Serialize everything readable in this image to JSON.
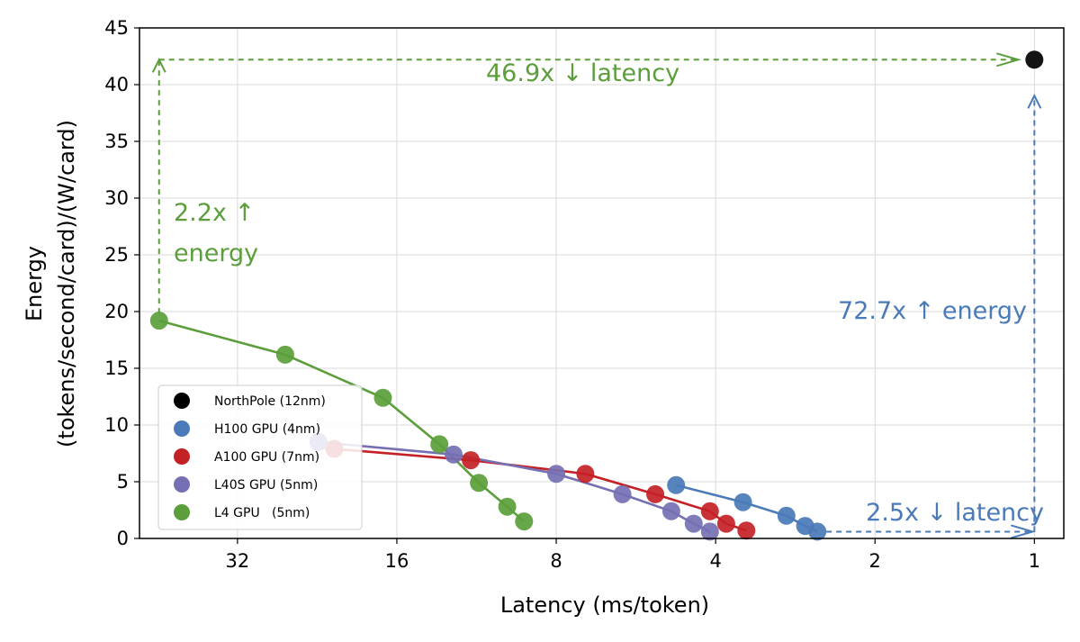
{
  "chart_data": {
    "type": "scatter",
    "title": "",
    "xlabel": "Latency (ms/token)",
    "ylabel_line1": "Energy",
    "ylabel_line2": "(tokens/second/card)/(W/card)",
    "xscale": "log2",
    "xaxis": "reversed",
    "xlim": [
      0.88,
      49
    ],
    "ylim": [
      0,
      45
    ],
    "grid": true,
    "x_ticks": [
      32,
      16,
      8,
      4,
      2,
      1
    ],
    "x_tick_labels": [
      "32",
      "16",
      "8",
      "4",
      "2",
      "1"
    ],
    "y_ticks": [
      0,
      5,
      10,
      15,
      20,
      25,
      30,
      35,
      40,
      45
    ],
    "y_tick_labels": [
      "0",
      "5",
      "10",
      "15",
      "20",
      "25",
      "30",
      "35",
      "40",
      "45"
    ],
    "legend_position": "lower-left",
    "series": [
      {
        "name": "NorthPole (12nm)",
        "color": "#000000",
        "line": false,
        "points": [
          {
            "x": 1.0,
            "y": 42.2
          }
        ]
      },
      {
        "name": "H100 GPU (4nm)",
        "color": "#4a7ab8",
        "line": true,
        "points": [
          {
            "x": 4.75,
            "y": 4.7
          },
          {
            "x": 3.55,
            "y": 3.2
          },
          {
            "x": 2.94,
            "y": 2.0
          },
          {
            "x": 2.71,
            "y": 1.1
          },
          {
            "x": 2.57,
            "y": 0.6
          }
        ]
      },
      {
        "name": "A100 GPU (7nm)",
        "color": "#c42126",
        "line": true,
        "points": [
          {
            "x": 21.0,
            "y": 7.9
          },
          {
            "x": 11.6,
            "y": 6.9
          },
          {
            "x": 7.05,
            "y": 5.7
          },
          {
            "x": 5.2,
            "y": 3.9
          },
          {
            "x": 4.1,
            "y": 2.4
          },
          {
            "x": 3.82,
            "y": 1.3
          },
          {
            "x": 3.5,
            "y": 0.7
          }
        ]
      },
      {
        "name": "L40S GPU (5nm)",
        "color": "#7570b3",
        "line": true,
        "points": [
          {
            "x": 22.5,
            "y": 8.5
          },
          {
            "x": 12.5,
            "y": 7.4
          },
          {
            "x": 8.0,
            "y": 5.7
          },
          {
            "x": 6.0,
            "y": 3.9
          },
          {
            "x": 4.85,
            "y": 2.4
          },
          {
            "x": 4.4,
            "y": 1.3
          },
          {
            "x": 4.1,
            "y": 0.6
          }
        ]
      },
      {
        "name": "L4 GPU   (5nm)",
        "color": "#5b9e3b",
        "line": true,
        "points": [
          {
            "x": 45.0,
            "y": 19.2
          },
          {
            "x": 26.0,
            "y": 16.2
          },
          {
            "x": 17.0,
            "y": 12.4
          },
          {
            "x": 13.3,
            "y": 8.3
          },
          {
            "x": 11.2,
            "y": 4.9
          },
          {
            "x": 9.9,
            "y": 2.8
          },
          {
            "x": 9.2,
            "y": 1.5
          }
        ]
      }
    ],
    "annotations": [
      {
        "text": "46.9x ↓ latency",
        "color": "#5b9e3b"
      },
      {
        "text": "2.2x ↑",
        "color": "#5b9e3b"
      },
      {
        "text": "energy",
        "color": "#5b9e3b"
      },
      {
        "text": "72.7x ↑ energy",
        "color": "#4a7ab8"
      },
      {
        "text": "2.5x ↓ latency",
        "color": "#4a7ab8"
      }
    ]
  }
}
